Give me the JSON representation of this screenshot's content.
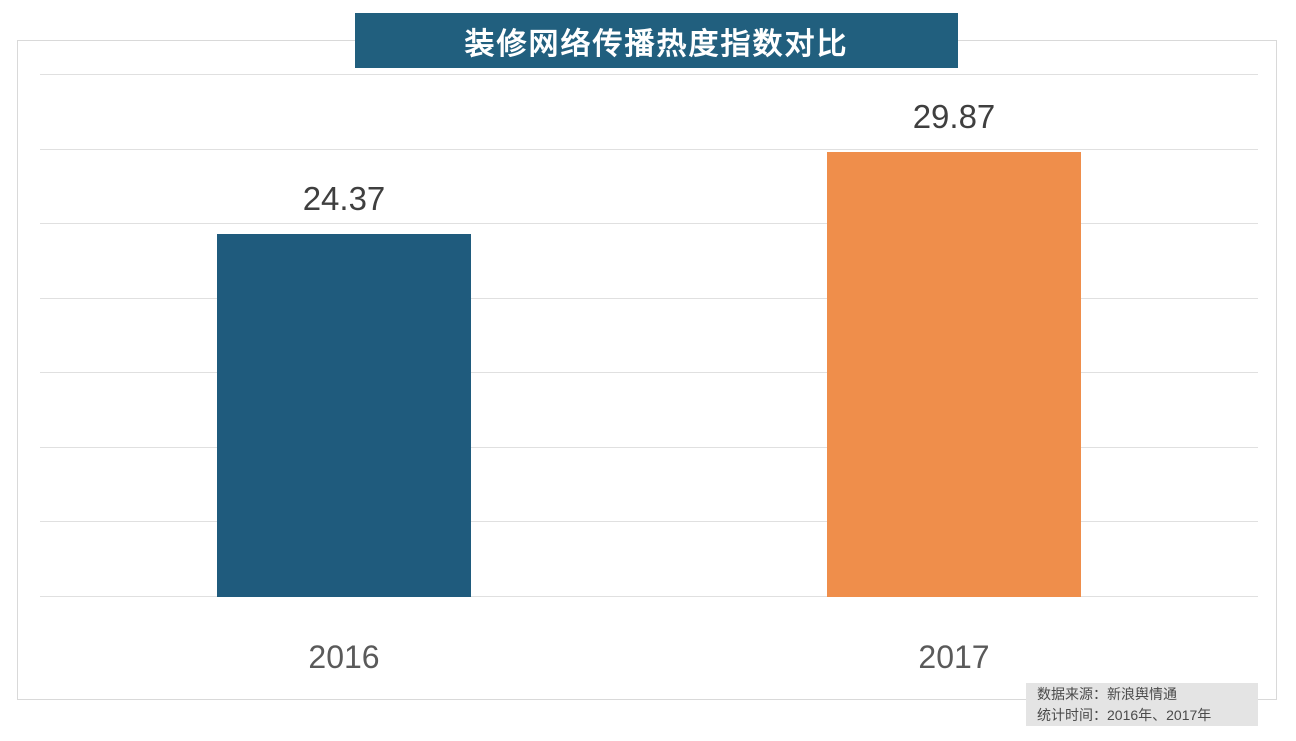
{
  "title": {
    "text": "装修网络传播热度指数对比",
    "bg_color": "#215f7e",
    "text_color": "#ffffff"
  },
  "chart_data": {
    "type": "bar",
    "title": "装修网络传播热度指数对比",
    "categories": [
      "2016",
      "2017"
    ],
    "values": [
      24.37,
      29.87
    ],
    "bar_colors": [
      "#1f5b7d",
      "#ef8e4b"
    ],
    "ylim": [
      0,
      35
    ],
    "gridline_step": 5,
    "grid": true,
    "xlabel": "",
    "ylabel": "",
    "legend_position": "none",
    "value_label_color": "#3f3f3f",
    "category_label_color": "#5a5a5a"
  },
  "source_note": {
    "line1": "数据来源：新浪舆情通",
    "line2": "统计时间：2016年、2017年"
  },
  "colors": {
    "gridline": "#e0e0e0",
    "frame_border": "#d9d9d9",
    "note_bg": "#e4e4e4",
    "note_text": "#4a4a4a",
    "page_bg": "#ffffff"
  }
}
